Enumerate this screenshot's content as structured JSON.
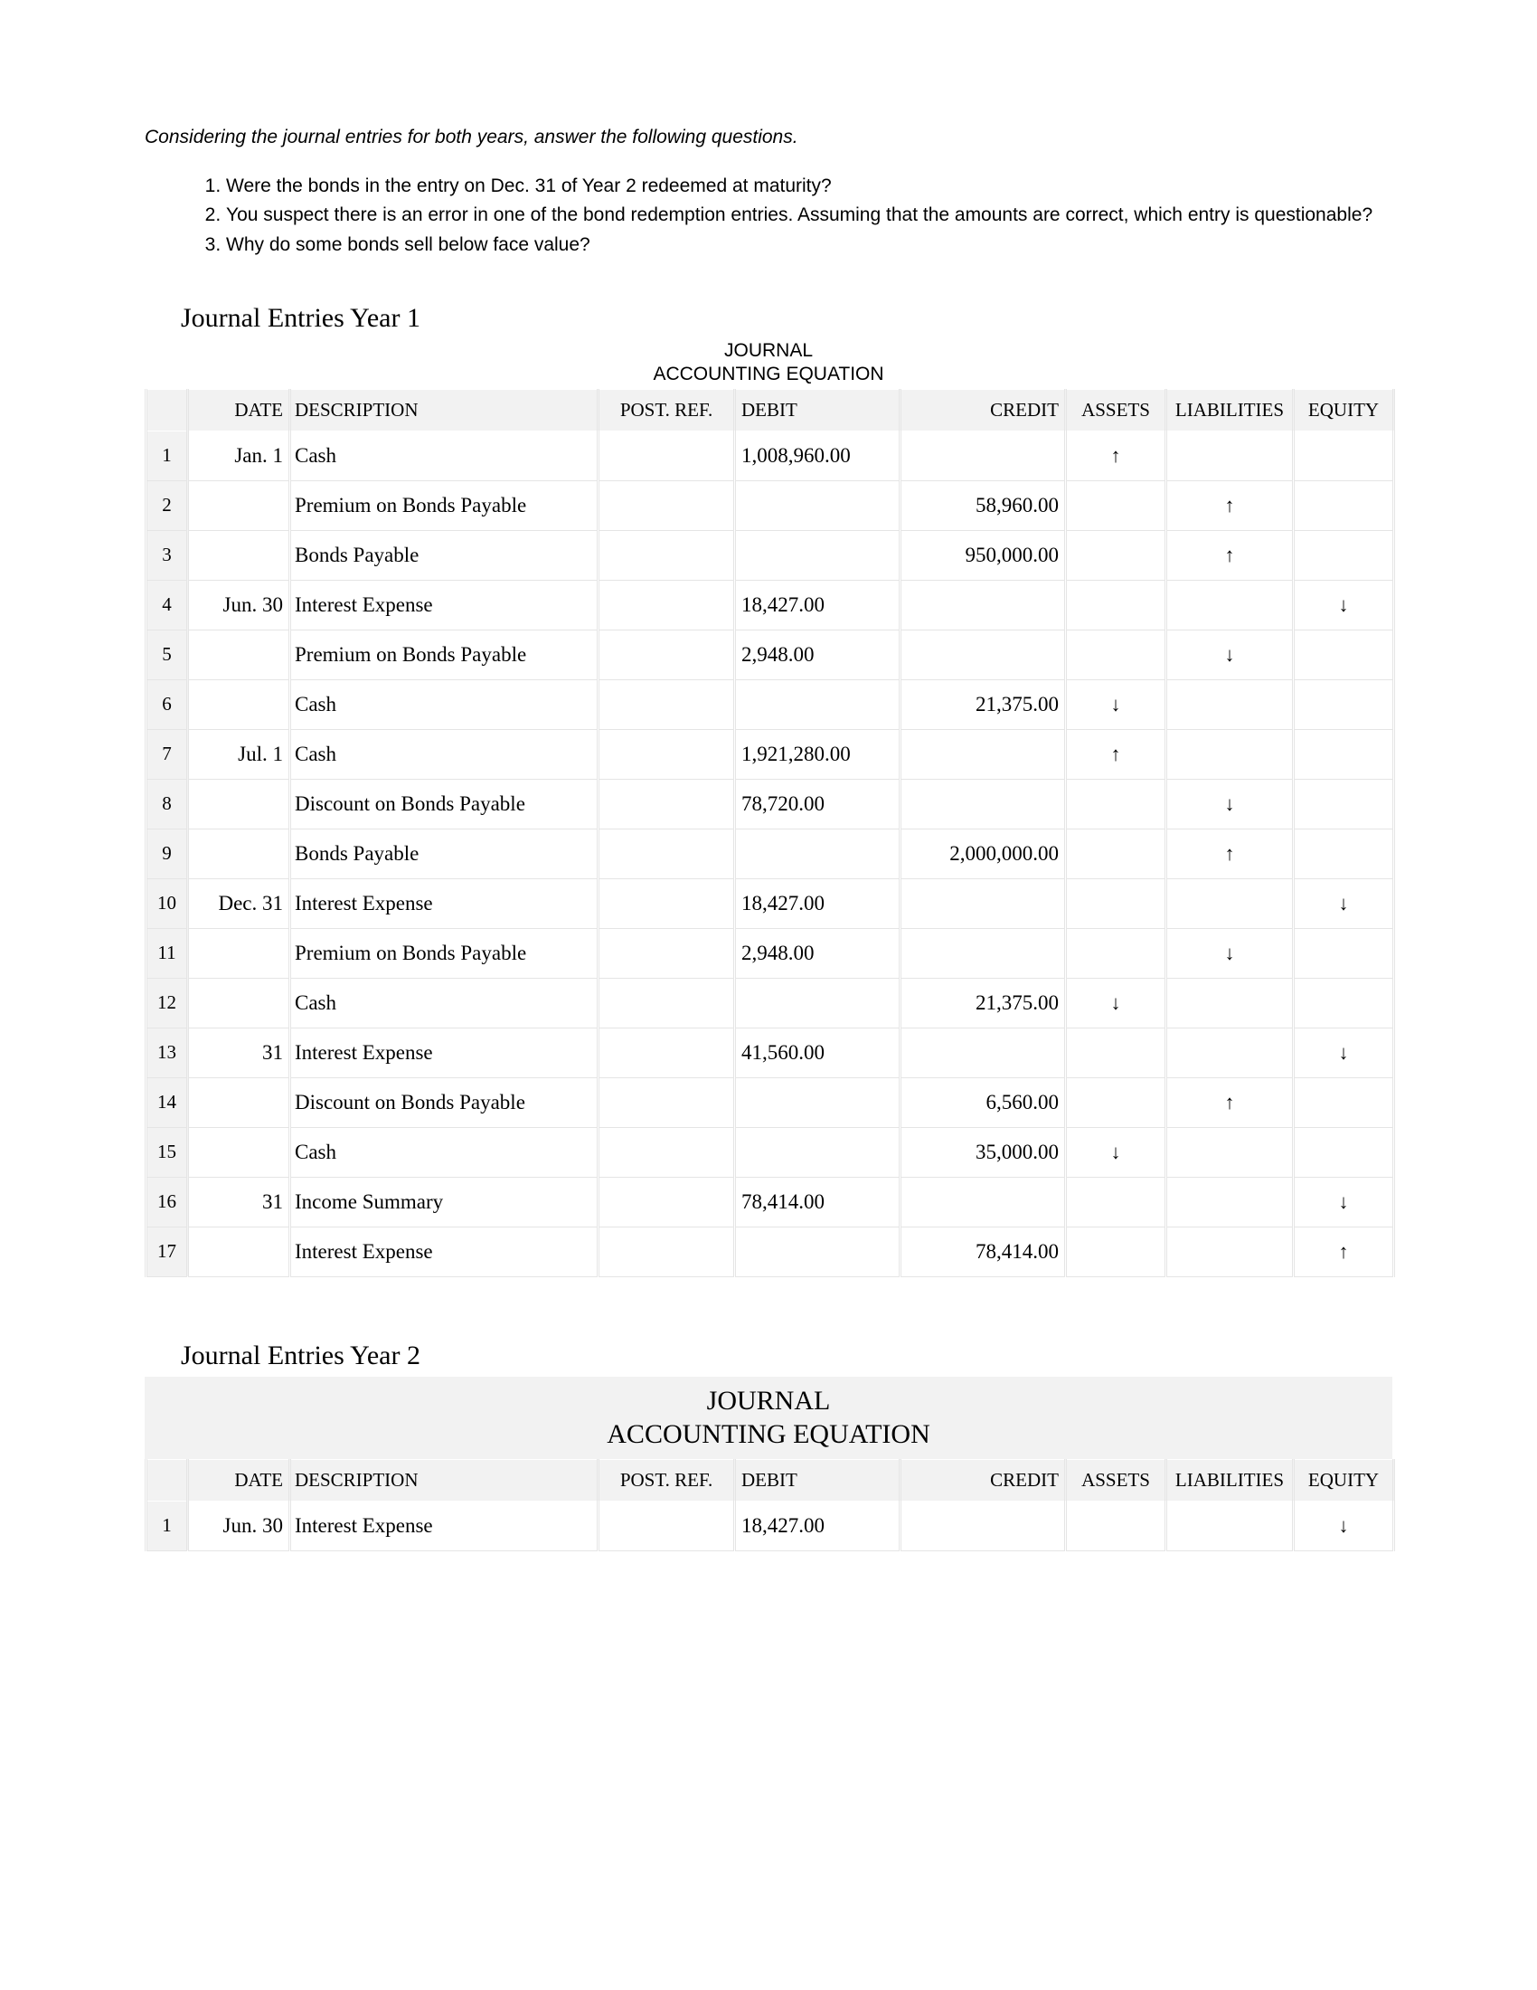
{
  "intro": "Considering the journal entries for both years, answer the following questions.",
  "questions": [
    "Were the bonds in the entry on Dec. 31 of Year 2 redeemed at maturity?",
    "You suspect there is an error in one of the bond redemption entries. Assuming that the amounts are correct, which entry is questionable?",
    "Why do some bonds sell below face value?"
  ],
  "year1": {
    "heading": "Journal Entries Year 1",
    "title_line1": "JOURNAL",
    "title_line2": "ACCOUNTING EQUATION",
    "columns": [
      "",
      "DATE",
      "DESCRIPTION",
      "POST. REF.",
      "DEBIT",
      "CREDIT",
      "ASSETS",
      "LIABILITIES",
      "EQUITY"
    ],
    "rows": [
      {
        "n": "1",
        "date": "Jan. 1",
        "desc": "Cash",
        "debit": "1,008,960.00",
        "credit": "",
        "a": "↑",
        "l": "",
        "e": ""
      },
      {
        "n": "2",
        "date": "",
        "desc": "Premium on Bonds Payable",
        "debit": "",
        "credit": "58,960.00",
        "a": "",
        "l": "↑",
        "e": ""
      },
      {
        "n": "3",
        "date": "",
        "desc": "Bonds Payable",
        "debit": "",
        "credit": "950,000.00",
        "a": "",
        "l": "↑",
        "e": ""
      },
      {
        "n": "4",
        "date": "Jun. 30",
        "desc": "Interest Expense",
        "debit": "18,427.00",
        "credit": "",
        "a": "",
        "l": "",
        "e": "↓"
      },
      {
        "n": "5",
        "date": "",
        "desc": "Premium on Bonds Payable",
        "debit": "2,948.00",
        "credit": "",
        "a": "",
        "l": "↓",
        "e": ""
      },
      {
        "n": "6",
        "date": "",
        "desc": "Cash",
        "debit": "",
        "credit": "21,375.00",
        "a": "↓",
        "l": "",
        "e": ""
      },
      {
        "n": "7",
        "date": "Jul. 1",
        "desc": "Cash",
        "debit": "1,921,280.00",
        "credit": "",
        "a": "↑",
        "l": "",
        "e": ""
      },
      {
        "n": "8",
        "date": "",
        "desc": "Discount on Bonds Payable",
        "debit": "78,720.00",
        "credit": "",
        "a": "",
        "l": "↓",
        "e": ""
      },
      {
        "n": "9",
        "date": "",
        "desc": "Bonds Payable",
        "debit": "",
        "credit": "2,000,000.00",
        "a": "",
        "l": "↑",
        "e": ""
      },
      {
        "n": "10",
        "date": "Dec. 31",
        "desc": "Interest Expense",
        "debit": "18,427.00",
        "credit": "",
        "a": "",
        "l": "",
        "e": "↓"
      },
      {
        "n": "11",
        "date": "",
        "desc": "Premium on Bonds Payable",
        "debit": "2,948.00",
        "credit": "",
        "a": "",
        "l": "↓",
        "e": ""
      },
      {
        "n": "12",
        "date": "",
        "desc": "Cash",
        "debit": "",
        "credit": "21,375.00",
        "a": "↓",
        "l": "",
        "e": ""
      },
      {
        "n": "13",
        "date": "31",
        "desc": "Interest Expense",
        "debit": "41,560.00",
        "credit": "",
        "a": "",
        "l": "",
        "e": "↓"
      },
      {
        "n": "14",
        "date": "",
        "desc": "Discount on Bonds Payable",
        "debit": "",
        "credit": "6,560.00",
        "a": "",
        "l": "↑",
        "e": ""
      },
      {
        "n": "15",
        "date": "",
        "desc": "Cash",
        "debit": "",
        "credit": "35,000.00",
        "a": "↓",
        "l": "",
        "e": ""
      },
      {
        "n": "16",
        "date": "31",
        "desc": "Income Summary",
        "debit": "78,414.00",
        "credit": "",
        "a": "",
        "l": "",
        "e": "↓"
      },
      {
        "n": "17",
        "date": "",
        "desc": "Interest Expense",
        "debit": "",
        "credit": "78,414.00",
        "a": "",
        "l": "",
        "e": "↑"
      }
    ]
  },
  "year2": {
    "heading": "Journal Entries Year 2",
    "title_line1": "JOURNAL",
    "title_line2": "ACCOUNTING EQUATION",
    "columns": [
      "",
      "DATE",
      "DESCRIPTION",
      "POST. REF.",
      "DEBIT",
      "CREDIT",
      "ASSETS",
      "LIABILITIES",
      "EQUITY"
    ],
    "rows": [
      {
        "n": "1",
        "date": "Jun. 30",
        "desc": "Interest Expense",
        "debit": "18,427.00",
        "credit": "",
        "a": "",
        "l": "",
        "e": "↓"
      }
    ]
  }
}
